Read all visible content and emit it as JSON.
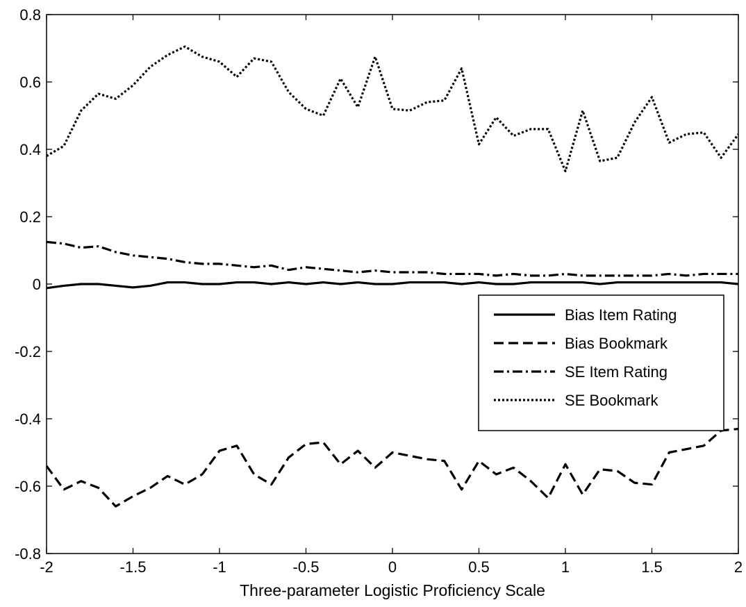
{
  "chart_data": {
    "type": "line",
    "title": "",
    "xlabel": "Three-parameter Logistic Proficiency Scale",
    "ylabel": "",
    "xlim": [
      -2,
      2
    ],
    "ylim": [
      -0.8,
      0.8
    ],
    "xticks": [
      -2,
      -1.5,
      -1,
      -0.5,
      0,
      0.5,
      1,
      1.5,
      2
    ],
    "xtick_labels": [
      "-2",
      "-1.5",
      "-1",
      "-0.5",
      "0",
      "0.5",
      "1",
      "1.5",
      "2"
    ],
    "yticks": [
      -0.8,
      -0.6,
      -0.4,
      -0.2,
      0,
      0.2,
      0.4,
      0.6,
      0.8
    ],
    "ytick_labels": [
      "-0.8",
      "-0.6",
      "-0.4",
      "-0.2",
      "0",
      "0.2",
      "0.4",
      "0.6",
      "0.8"
    ],
    "grid": false,
    "legend_position": "right",
    "x": [
      -2,
      -1.9,
      -1.8,
      -1.7,
      -1.6,
      -1.5,
      -1.4,
      -1.3,
      -1.2,
      -1.1,
      -1.0,
      -0.9,
      -0.8,
      -0.7,
      -0.6,
      -0.5,
      -0.4,
      -0.3,
      -0.2,
      -0.1,
      0.0,
      0.1,
      0.2,
      0.3,
      0.4,
      0.5,
      0.6,
      0.7,
      0.8,
      0.9,
      1.0,
      1.1,
      1.2,
      1.3,
      1.4,
      1.5,
      1.6,
      1.7,
      1.8,
      1.9,
      2.0
    ],
    "series": [
      {
        "name": "Bias Item Rating",
        "style": "solid",
        "color": "#000000",
        "values": [
          -0.012,
          -0.005,
          0.0,
          0.0,
          -0.005,
          -0.01,
          -0.005,
          0.005,
          0.005,
          0.0,
          0.0,
          0.005,
          0.005,
          0.0,
          0.005,
          0.0,
          0.005,
          0.0,
          0.005,
          0.0,
          0.0,
          0.005,
          0.005,
          0.005,
          0.0,
          0.005,
          0.0,
          0.0,
          0.005,
          0.005,
          0.005,
          0.005,
          0.0,
          0.005,
          0.005,
          0.005,
          0.005,
          0.005,
          0.005,
          0.005,
          0.0
        ]
      },
      {
        "name": "Bias Bookmark",
        "style": "dashed",
        "color": "#000000",
        "values": [
          -0.54,
          -0.61,
          -0.585,
          -0.605,
          -0.66,
          -0.63,
          -0.605,
          -0.57,
          -0.595,
          -0.565,
          -0.495,
          -0.48,
          -0.565,
          -0.595,
          -0.515,
          -0.475,
          -0.47,
          -0.535,
          -0.495,
          -0.545,
          -0.5,
          -0.51,
          -0.52,
          -0.525,
          -0.61,
          -0.525,
          -0.565,
          -0.545,
          -0.585,
          -0.635,
          -0.535,
          -0.625,
          -0.55,
          -0.555,
          -0.59,
          -0.595,
          -0.5,
          -0.49,
          -0.48,
          -0.435,
          -0.43
        ]
      },
      {
        "name": "SE Item Rating",
        "style": "dashdot",
        "color": "#000000",
        "values": [
          0.125,
          0.12,
          0.108,
          0.112,
          0.095,
          0.085,
          0.08,
          0.075,
          0.065,
          0.06,
          0.06,
          0.055,
          0.05,
          0.055,
          0.042,
          0.05,
          0.045,
          0.04,
          0.035,
          0.04,
          0.035,
          0.035,
          0.035,
          0.03,
          0.03,
          0.03,
          0.025,
          0.03,
          0.025,
          0.025,
          0.03,
          0.025,
          0.025,
          0.025,
          0.025,
          0.025,
          0.03,
          0.025,
          0.03,
          0.03,
          0.03
        ]
      },
      {
        "name": "SE Bookmark",
        "style": "dotted",
        "color": "#000000",
        "values": [
          0.38,
          0.41,
          0.515,
          0.565,
          0.55,
          0.59,
          0.645,
          0.68,
          0.705,
          0.675,
          0.66,
          0.615,
          0.67,
          0.66,
          0.57,
          0.52,
          0.5,
          0.61,
          0.525,
          0.675,
          0.52,
          0.515,
          0.54,
          0.545,
          0.64,
          0.415,
          0.495,
          0.44,
          0.46,
          0.46,
          0.335,
          0.515,
          0.365,
          0.375,
          0.48,
          0.555,
          0.42,
          0.445,
          0.45,
          0.375,
          0.445
        ]
      }
    ]
  }
}
